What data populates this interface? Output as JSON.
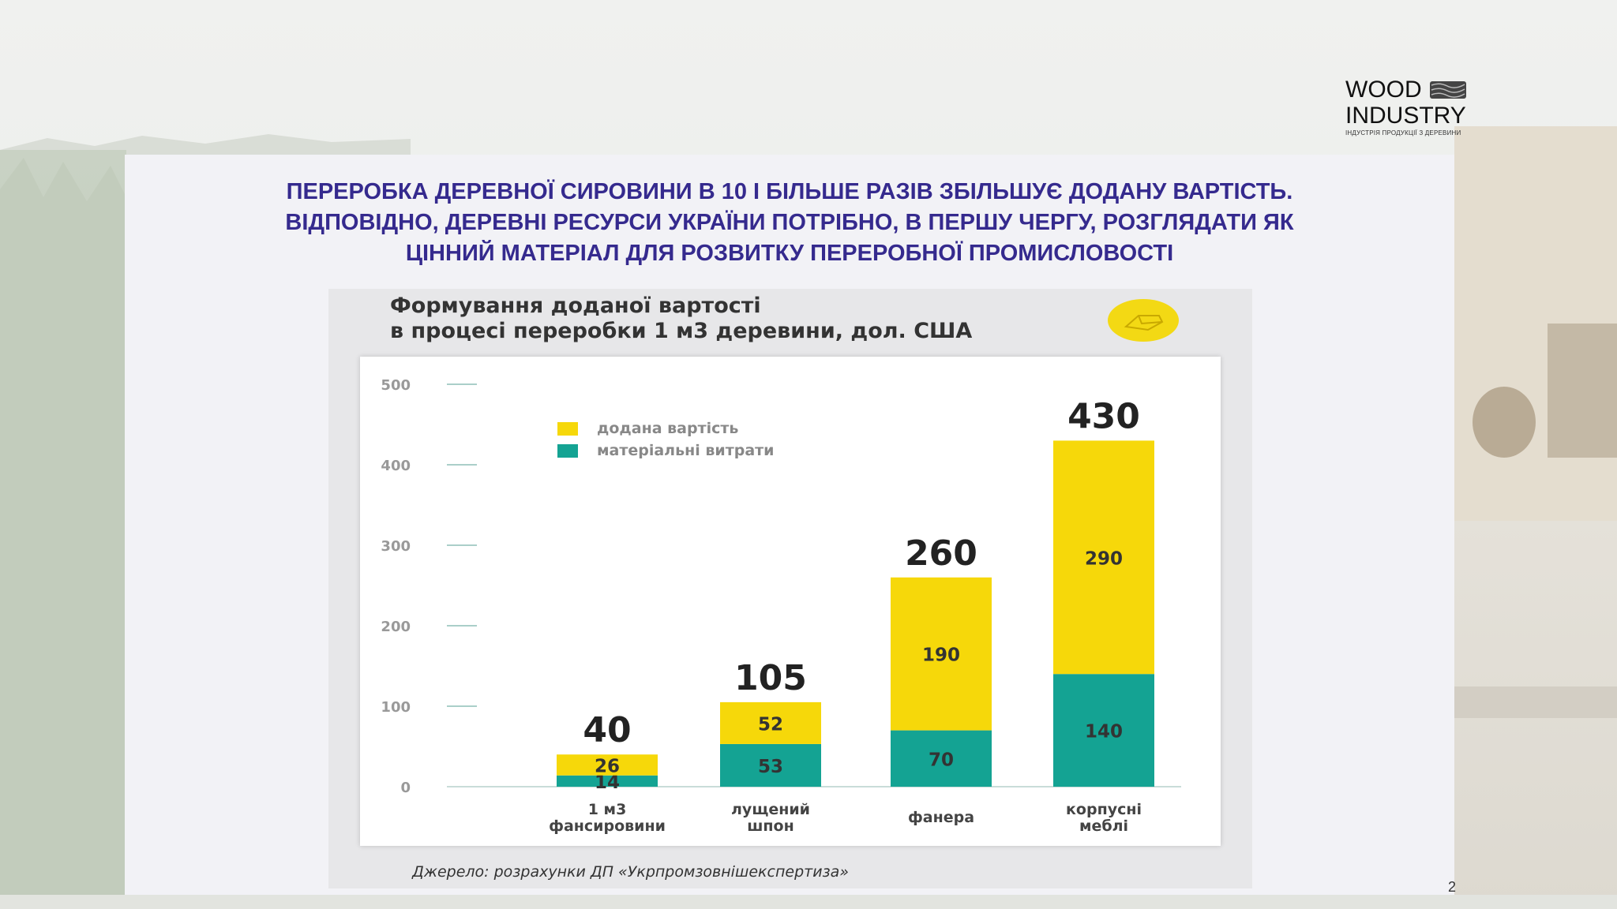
{
  "logo": {
    "line1": "WOOD",
    "line2": "INDUSTRY",
    "tagline": "ІНДУСТРІЯ ПРОДУКЦІЇ З ДЕРЕВИНИ"
  },
  "headline": [
    "ПЕРЕРОБКА ДЕРЕВНОЇ СИРОВИНИ В 10 І БІЛЬШЕ РАЗІВ ЗБІЛЬШУЄ ДОДАНУ ВАРТІСТЬ.",
    "ВІДПОВІДНО, ДЕРЕВНІ РЕСУРСИ УКРАЇНИ ПОТРІБНО, В ПЕРШУ ЧЕРГУ, РОЗГЛЯДАТИ ЯК",
    "ЦІННИЙ МАТЕРІАЛ ДЛЯ РОЗВИТКУ ПЕРЕРОБНОЇ ПРОМИСЛОВОСТІ"
  ],
  "colors": {
    "added_value": "#f6d80a",
    "material_costs": "#14a393",
    "headline": "#352a8e"
  },
  "chart_data": {
    "type": "bar",
    "stacked": true,
    "title_line1": "Формування доданої вартості",
    "title_line2": "в процесі переробки 1 м3 деревини, дол. США",
    "categories": [
      [
        "1 м3",
        "фансировини"
      ],
      [
        "лущений",
        "шпон"
      ],
      [
        "фанера"
      ],
      [
        "корпусні",
        "меблі"
      ]
    ],
    "series": [
      {
        "name": "матеріальні витрати",
        "values": [
          14,
          53,
          70,
          140
        ],
        "labels": [
          "14",
          "53",
          "70",
          "140"
        ],
        "color": "#14a393"
      },
      {
        "name": "додана вартість",
        "values": [
          26,
          52,
          190,
          290
        ],
        "labels": [
          "26",
          "52",
          "190",
          "290"
        ],
        "color": "#f6d80a"
      }
    ],
    "totals": [
      40,
      105,
      260,
      430
    ],
    "total_labels": [
      "40",
      "105",
      "260",
      "430"
    ],
    "ylim": [
      0,
      500
    ],
    "yticks": [
      0,
      100,
      200,
      300,
      400,
      500
    ],
    "ytick_labels": [
      "0",
      "100",
      "200",
      "300",
      "400",
      "500"
    ],
    "legend": [
      {
        "label": "додана вартість",
        "color": "#f6d80a"
      },
      {
        "label": "матеріальні витрати",
        "color": "#14a393"
      }
    ],
    "legend_position": "top-left",
    "grid": false,
    "source": "Джерело: розрахунки ДП «Укрпромзовнішекспертиза»"
  },
  "page_number": "2"
}
